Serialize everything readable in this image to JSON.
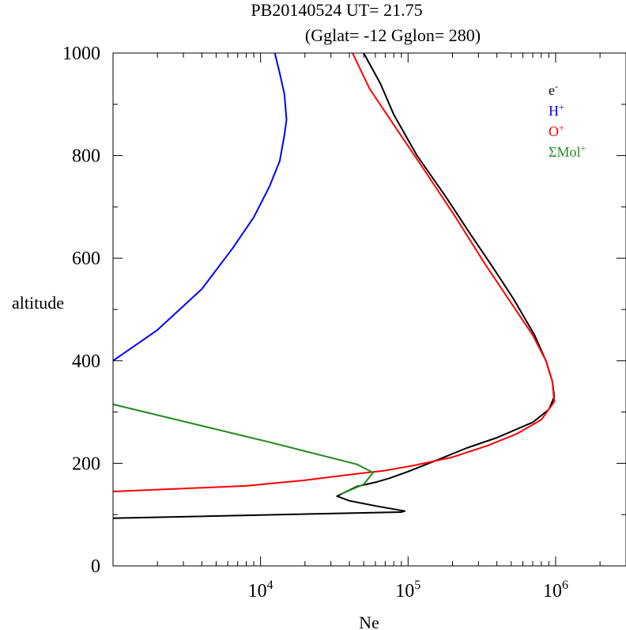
{
  "chart_data": {
    "type": "line",
    "title": "PB20140524   UT=  21.75",
    "subtitle": "(Gglat= -12   Gglon=  280)",
    "xlabel": "Ne",
    "ylabel": "altitude",
    "xscale": "log",
    "xlim": [
      1000,
      3000000
    ],
    "ylim": [
      0,
      1000
    ],
    "grid": false,
    "legend_position": "top-right",
    "y_ticks": [
      0,
      200,
      400,
      600,
      800,
      1000
    ],
    "y_tick_labels": [
      "0",
      "200",
      "400",
      "600",
      "800",
      "1000"
    ],
    "x_major_ticks": [
      10000,
      100000,
      1000000
    ],
    "x_tick_labels": [
      {
        "base": "10",
        "exp": "4"
      },
      {
        "base": "10",
        "exp": "5"
      },
      {
        "base": "10",
        "exp": "6"
      }
    ],
    "series": [
      {
        "name": "e",
        "name_sup": "-",
        "color": "#000000",
        "points": [
          [
            1000,
            93
          ],
          [
            90000,
            105
          ],
          [
            95000,
            107
          ],
          [
            60000,
            117
          ],
          [
            40000,
            127
          ],
          [
            33000,
            136
          ],
          [
            45000,
            155
          ],
          [
            60000,
            163
          ],
          [
            75000,
            171
          ],
          [
            100000,
            184
          ],
          [
            150000,
            204
          ],
          [
            250000,
            230
          ],
          [
            400000,
            250
          ],
          [
            700000,
            280
          ],
          [
            900000,
            305
          ],
          [
            980000,
            330
          ],
          [
            950000,
            360
          ],
          [
            860000,
            400
          ],
          [
            720000,
            450
          ],
          [
            520000,
            520
          ],
          [
            380000,
            580
          ],
          [
            260000,
            650
          ],
          [
            180000,
            720
          ],
          [
            115000,
            800
          ],
          [
            80000,
            880
          ],
          [
            65000,
            940
          ],
          [
            50000,
            1000
          ]
        ]
      },
      {
        "name": "H",
        "name_sup": "+",
        "color": "#0000ff",
        "points": [
          [
            1000,
            400
          ],
          [
            2000,
            460
          ],
          [
            4000,
            540
          ],
          [
            6500,
            620
          ],
          [
            9000,
            680
          ],
          [
            11500,
            740
          ],
          [
            13500,
            790
          ],
          [
            14500,
            840
          ],
          [
            15000,
            870
          ],
          [
            14500,
            920
          ],
          [
            13500,
            960
          ],
          [
            12500,
            1000
          ]
        ]
      },
      {
        "name": "O",
        "name_sup": "+",
        "color": "#ff0000",
        "points": [
          [
            1000,
            145
          ],
          [
            8000,
            156
          ],
          [
            20000,
            167
          ],
          [
            40000,
            178
          ],
          [
            70000,
            186
          ],
          [
            110000,
            196
          ],
          [
            200000,
            212
          ],
          [
            350000,
            235
          ],
          [
            550000,
            258
          ],
          [
            800000,
            285
          ],
          [
            980000,
            320
          ],
          [
            950000,
            360
          ],
          [
            860000,
            400
          ],
          [
            700000,
            450
          ],
          [
            480000,
            520
          ],
          [
            330000,
            590
          ],
          [
            210000,
            680
          ],
          [
            130000,
            770
          ],
          [
            80000,
            860
          ],
          [
            55000,
            930
          ],
          [
            42000,
            1000
          ]
        ]
      },
      {
        "name": "ΣMol",
        "name_sup": "+",
        "color": "#228b22",
        "points": [
          [
            1000,
            315
          ],
          [
            12000,
            240
          ],
          [
            45000,
            198
          ],
          [
            58000,
            182
          ],
          [
            50000,
            159
          ],
          [
            35000,
            140
          ]
        ]
      }
    ]
  }
}
